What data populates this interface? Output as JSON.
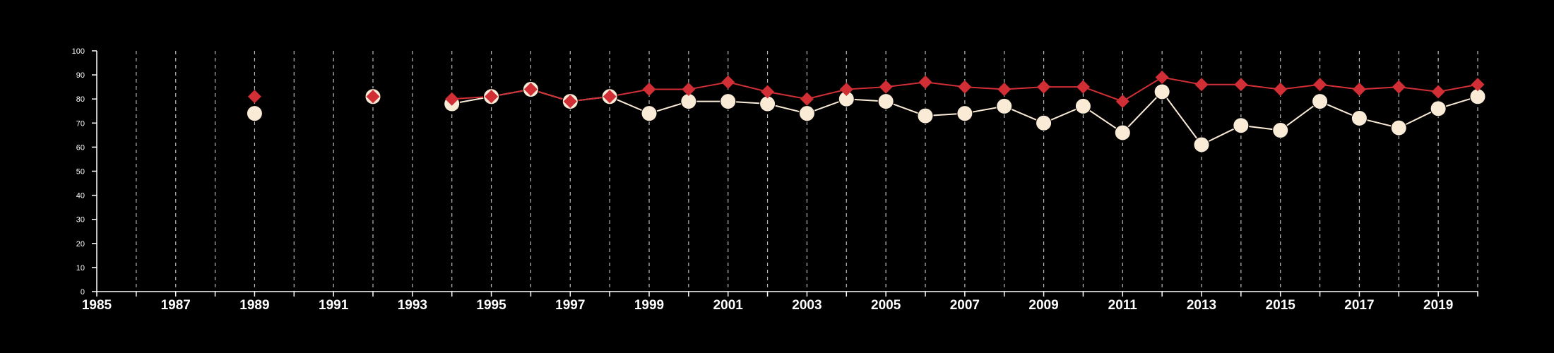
{
  "chart_data": {
    "type": "line",
    "title": "",
    "xlabel": "",
    "ylabel": "",
    "xlim": [
      1985,
      2020
    ],
    "ylim": [
      0,
      100
    ],
    "x_ticks": [
      "1985",
      "1987",
      "1989",
      "1991",
      "1993",
      "1995",
      "1997",
      "1999",
      "2001",
      "2003",
      "2005",
      "2007",
      "2009",
      "2011",
      "2013",
      "2015",
      "2017",
      "2019"
    ],
    "y_ticks": [
      "0",
      "10",
      "20",
      "30",
      "40",
      "50",
      "60",
      "70",
      "80",
      "90",
      "100"
    ],
    "grid": "vertical dashed lines at every year",
    "legend": "none",
    "series": [
      {
        "color": "#d12f35",
        "marker": "diamond",
        "points": [
          [
            1989,
            81
          ],
          [
            1992,
            81
          ],
          [
            1994,
            80
          ],
          [
            1995,
            81
          ],
          [
            1996,
            84
          ],
          [
            1997,
            79
          ],
          [
            1998,
            81
          ],
          [
            1999,
            84
          ],
          [
            2000,
            84
          ],
          [
            2001,
            87
          ],
          [
            2002,
            83
          ],
          [
            2003,
            80
          ],
          [
            2004,
            84
          ],
          [
            2005,
            85
          ],
          [
            2006,
            87
          ],
          [
            2007,
            85
          ],
          [
            2008,
            84
          ],
          [
            2009,
            85
          ],
          [
            2010,
            85
          ],
          [
            2011,
            79
          ],
          [
            2012,
            89
          ],
          [
            2013,
            86
          ],
          [
            2014,
            86
          ],
          [
            2015,
            84
          ],
          [
            2016,
            86
          ],
          [
            2017,
            84
          ],
          [
            2018,
            85
          ],
          [
            2019,
            83
          ],
          [
            2020,
            86
          ]
        ]
      },
      {
        "color": "#faebd7",
        "marker": "circle",
        "points": [
          [
            1989,
            74
          ],
          [
            1992,
            81
          ],
          [
            1994,
            78
          ],
          [
            1995,
            81
          ],
          [
            1996,
            84
          ],
          [
            1997,
            79
          ],
          [
            1998,
            81
          ],
          [
            1999,
            74
          ],
          [
            2000,
            79
          ],
          [
            2001,
            79
          ],
          [
            2002,
            78
          ],
          [
            2003,
            74
          ],
          [
            2004,
            80
          ],
          [
            2005,
            79
          ],
          [
            2006,
            73
          ],
          [
            2007,
            74
          ],
          [
            2008,
            77
          ],
          [
            2009,
            70
          ],
          [
            2010,
            77
          ],
          [
            2011,
            66
          ],
          [
            2012,
            83
          ],
          [
            2013,
            61
          ],
          [
            2014,
            69
          ],
          [
            2015,
            67
          ],
          [
            2016,
            79
          ],
          [
            2017,
            72
          ],
          [
            2018,
            68
          ],
          [
            2019,
            76
          ],
          [
            2020,
            81
          ]
        ]
      }
    ],
    "colors": {
      "background": "#000000",
      "axis": "#ffffff",
      "grid": "#bbbbbb"
    }
  }
}
